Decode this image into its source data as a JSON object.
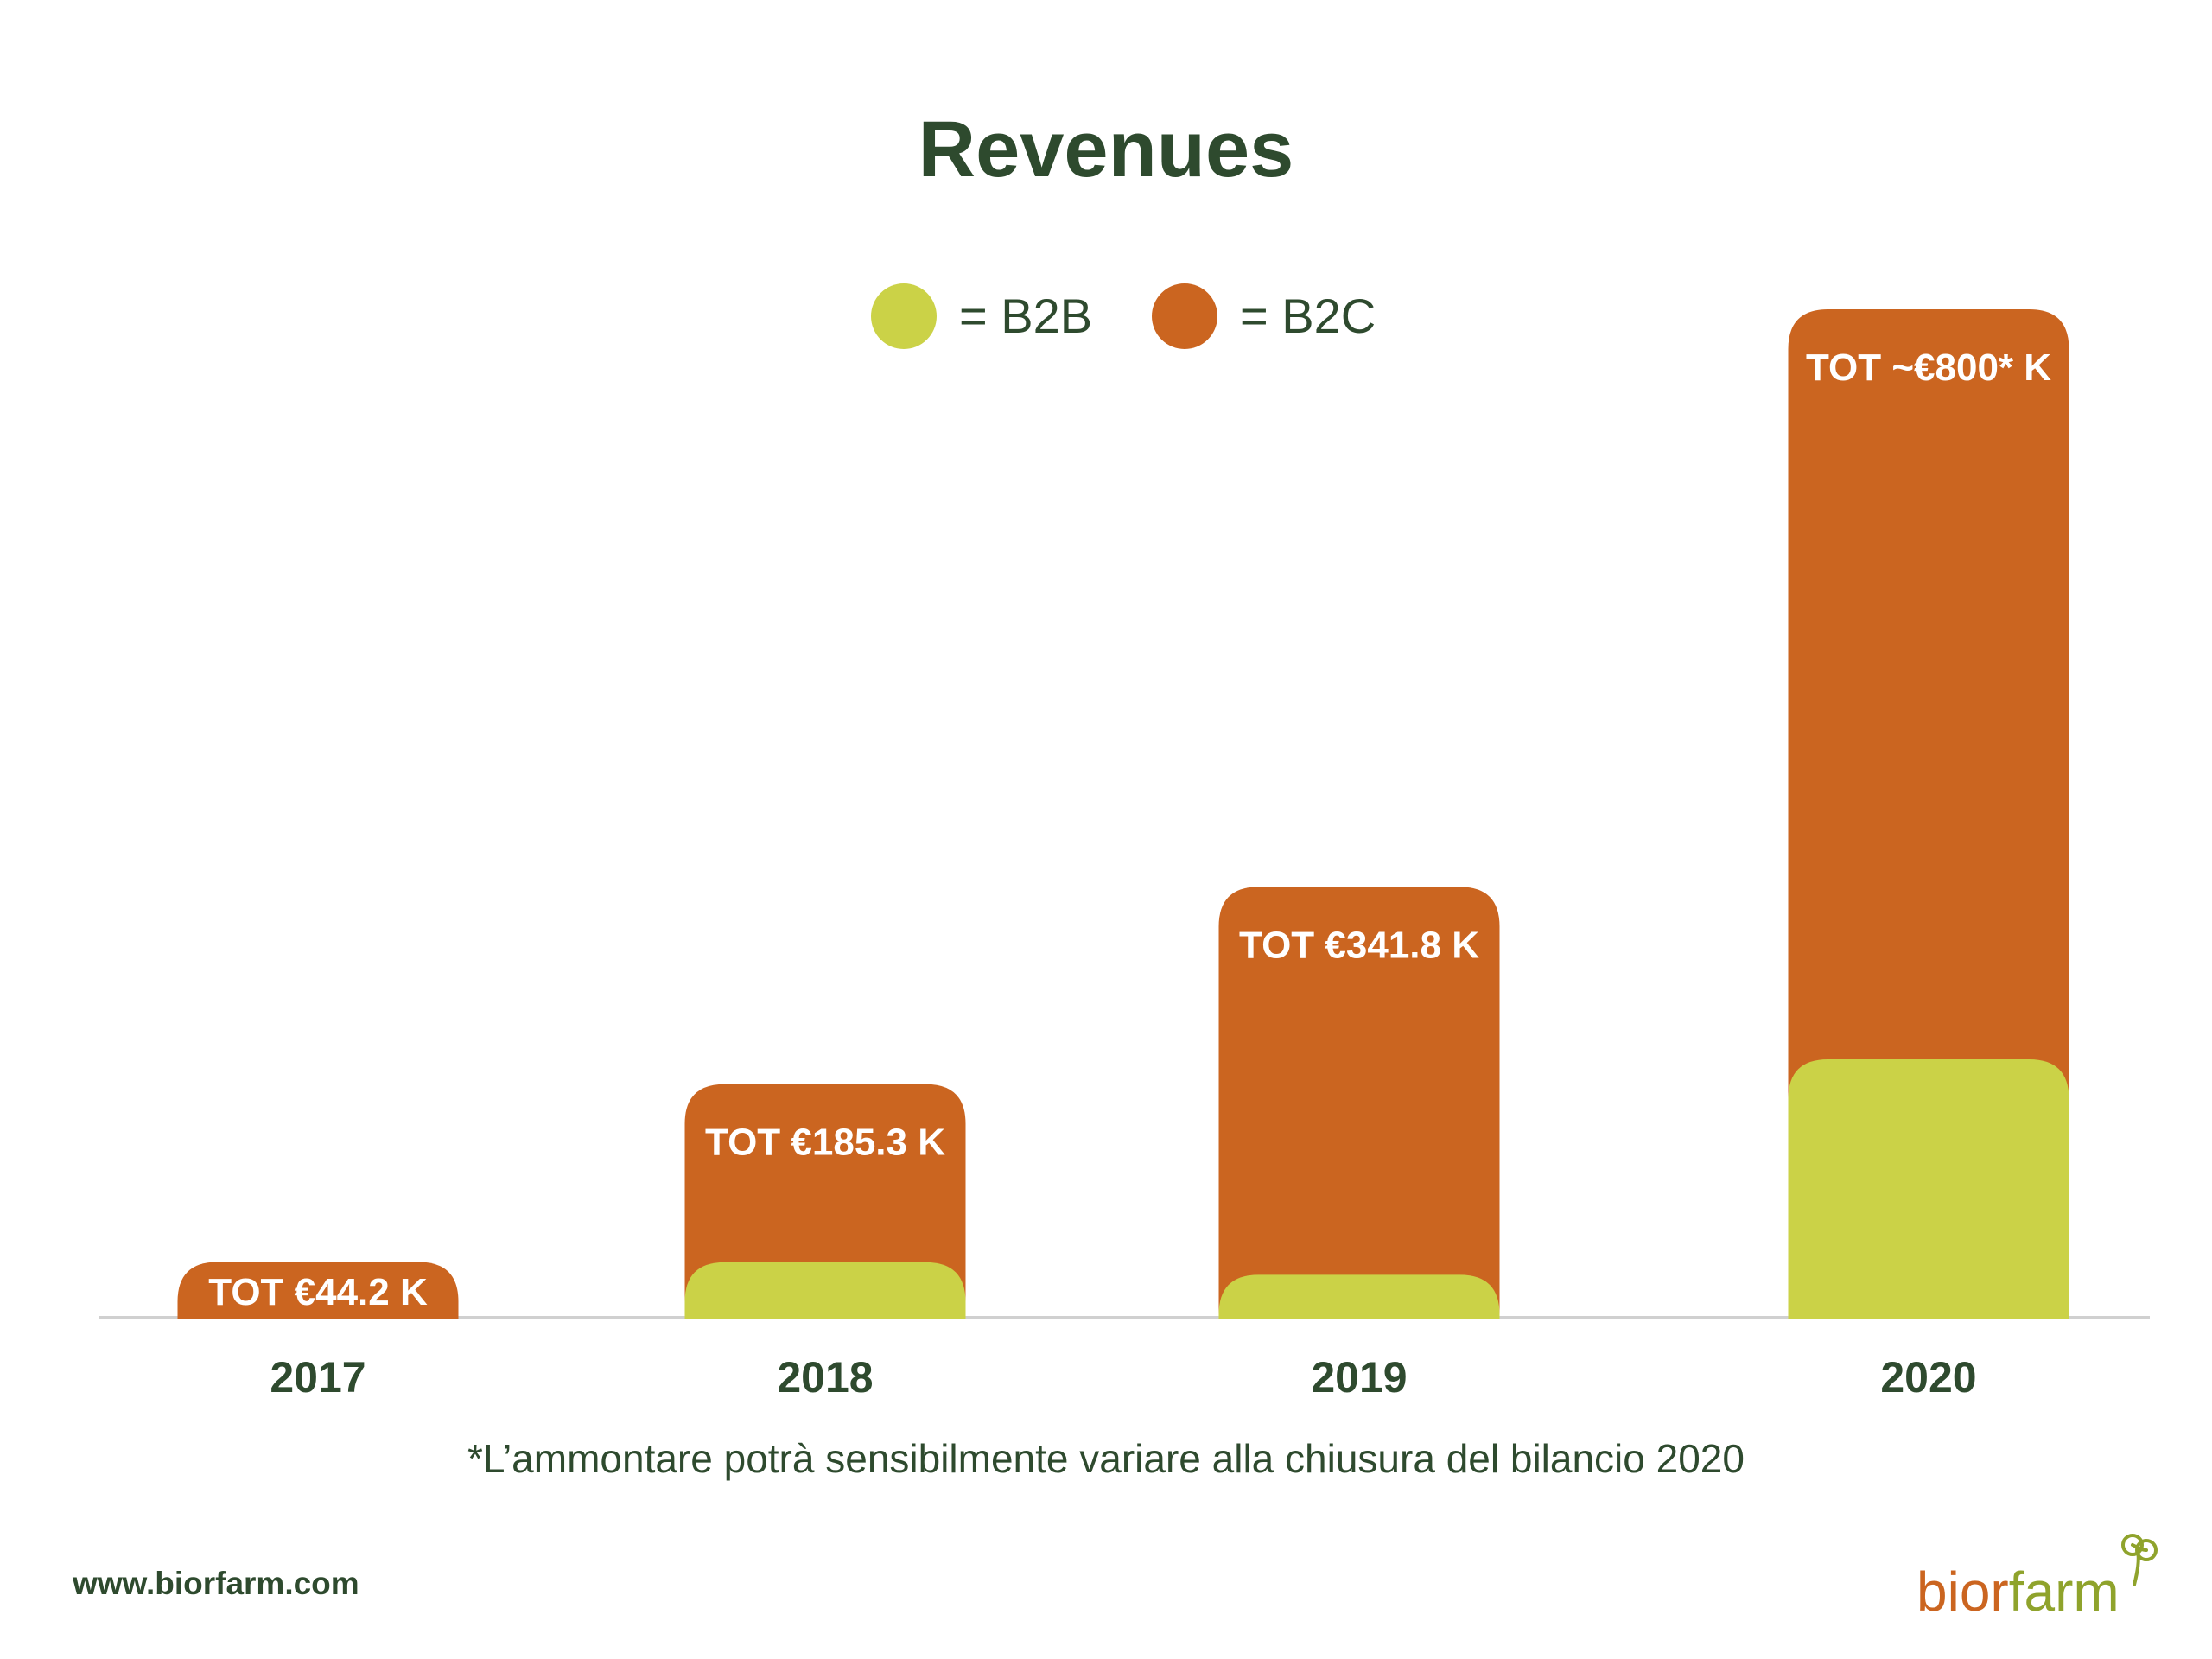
{
  "colors": {
    "b2b": "#cbd247",
    "b2c": "#cb6520",
    "text": "#2e4a2e",
    "axis": "#d0d0d0",
    "bar_label": "#ffffff",
    "logo_bior": "#cb6520",
    "logo_farm": "#8fa32c"
  },
  "chart_data": {
    "type": "bar",
    "title": "Revenues",
    "categories": [
      "2017",
      "2018",
      "2019",
      "2020"
    ],
    "series": [
      {
        "name": "B2B",
        "values": [
          0,
          44,
          34,
          205
        ]
      },
      {
        "name": "B2C",
        "values": [
          44.2,
          141.3,
          307.8,
          595
        ]
      }
    ],
    "totals": [
      44.2,
      185.3,
      341.8,
      800
    ],
    "data_labels": [
      "TOT €44.2 K",
      "TOT €185.3 K",
      "TOT €341.8 K",
      "TOT ~€800* K"
    ],
    "ylim": [
      0,
      800
    ],
    "stacked": true,
    "grid": false,
    "legend": {
      "position": "top-center",
      "entries": [
        {
          "label": "= B2B",
          "series": "B2B"
        },
        {
          "label": "= B2C",
          "series": "B2C"
        }
      ]
    },
    "xlabel": "",
    "ylabel": ""
  },
  "footnote": "*L’ammontare potrà sensibilmente variare alla chiusura del bilancio 2020",
  "footer": {
    "website": "www.biorfarm.com",
    "logo_text_part1": "bior",
    "logo_text_part2": "farm"
  }
}
